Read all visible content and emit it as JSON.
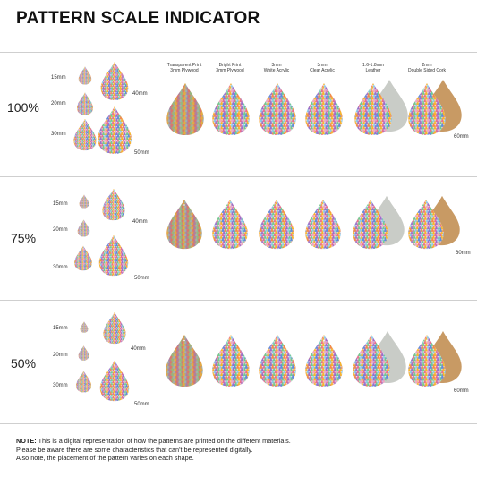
{
  "title": "PATTERN SCALE INDICATOR",
  "materials": [
    {
      "line1": "Transparent Print",
      "line2": "3mm Plywood"
    },
    {
      "line1": "Bright Print",
      "line2": "3mm Plywood"
    },
    {
      "line1": "3mm",
      "line2": "White Acrylic"
    },
    {
      "line1": "3mm",
      "line2": "Clear Acrylic"
    },
    {
      "line1": "1.6-1.8mm",
      "line2": "Leather"
    },
    {
      "line1": "2mm",
      "line2": "Double Sided Cork"
    }
  ],
  "sections": [
    {
      "scale": "100%",
      "sizes": [
        "15mm",
        "20mm",
        "30mm",
        "40mm",
        "50mm"
      ],
      "big_size": "60mm"
    },
    {
      "scale": "75%",
      "sizes": [
        "15mm",
        "20mm",
        "30mm",
        "40mm",
        "50mm"
      ],
      "big_size": "60mm"
    },
    {
      "scale": "50%",
      "sizes": [
        "15mm",
        "20mm",
        "30mm",
        "40mm",
        "50mm"
      ],
      "big_size": "60mm"
    }
  ],
  "note": {
    "label": "NOTE:",
    "line1": " This is a digital representation of how the patterns are printed on the different materials.",
    "line2": "Please be aware there are some characteristics that can't be represented digitally.",
    "line3": "Also note, the placement of the pattern varies on each shape."
  },
  "colors": {
    "plywood": "#c99a62",
    "leather_back": "#c9ccc7",
    "cork_back": "#c89a64",
    "divider": "#cfcfcf",
    "triangles": [
      "#e8537a",
      "#f7b52c",
      "#7fc6e8",
      "#9b6fc9",
      "#74c98f",
      "#f58a4b",
      "#f3a6c0",
      "#5a8fe0"
    ]
  }
}
